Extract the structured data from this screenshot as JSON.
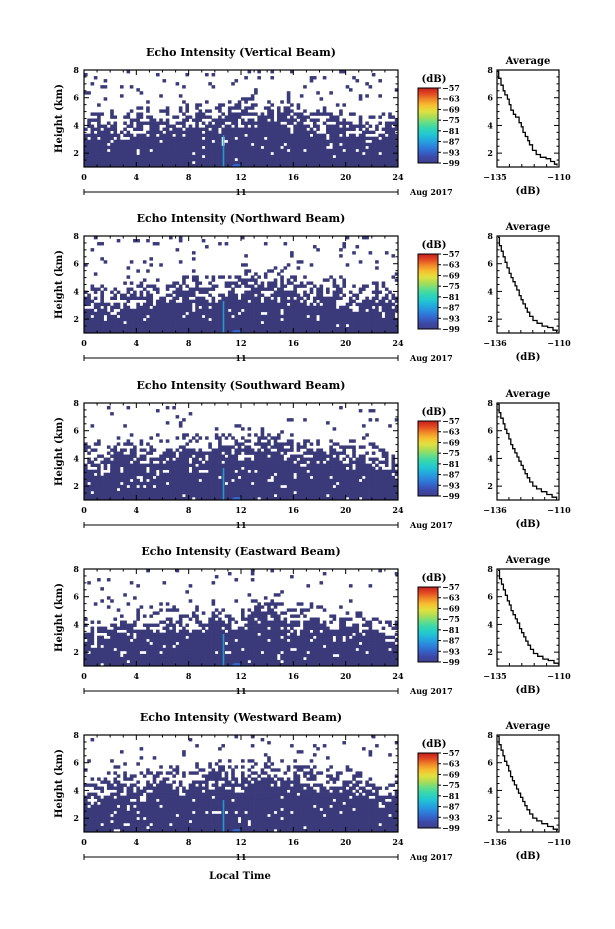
{
  "figure": {
    "xlabel": "Local Time",
    "date_label": "Aug 2017",
    "day_label": "11",
    "colorbar_unit": "(dB)",
    "avg_title": "Average",
    "avg_xlabel": "(dB)"
  },
  "colors": {
    "background": "#ffffff",
    "base": "#3a3a7a",
    "colormap": [
      "#3f3f8c",
      "#3c49a8",
      "#3366cc",
      "#2b88dd",
      "#22aadd",
      "#22c8d0",
      "#33d6b0",
      "#66dd88",
      "#aadd55",
      "#e0e040",
      "#f7c030",
      "#f08a28",
      "#e24a22",
      "#c41e1e"
    ]
  },
  "chart_data": [
    {
      "type": "heatmap",
      "title": "Echo Intensity (Vertical Beam)",
      "ylabel": "Height (km)",
      "xlim": [
        0,
        24
      ],
      "ylim": [
        1,
        8
      ],
      "xticks": [
        0,
        4,
        8,
        12,
        16,
        20,
        24
      ],
      "yticks": [
        2,
        4,
        6,
        8
      ],
      "colorbar": {
        "ticks": [
          -57,
          -63,
          -69,
          -75,
          -81,
          -87,
          -93,
          -99
        ],
        "range": [
          -99,
          -57
        ]
      },
      "profile": {
        "xlim": [
          -135,
          -110
        ],
        "xtick_labels": [
          "-135",
          "-110"
        ],
        "yticks": [
          2,
          4,
          6,
          8
        ],
        "x": [
          -134.8,
          -134.3,
          -133.4,
          -132.5,
          -131.8,
          -130.8,
          -130.1,
          -129.4,
          -128.4,
          -127.5,
          -126.1,
          -125.2,
          -124.5,
          -123.6,
          -122.6,
          -121.9,
          -120.7,
          -119.2,
          -117.5,
          -115.2,
          -113.4,
          -111.8,
          -110.8
        ],
        "y": [
          7.9,
          7.4,
          6.9,
          6.5,
          6.2,
          5.9,
          5.5,
          5.1,
          4.8,
          4.6,
          4.2,
          3.9,
          3.5,
          3.2,
          2.9,
          2.6,
          2.2,
          1.9,
          1.7,
          1.6,
          1.4,
          1.2,
          1.1
        ]
      }
    },
    {
      "type": "heatmap",
      "title": "Echo Intensity (Northward Beam)",
      "ylabel": "Height (km)",
      "xlim": [
        0,
        24
      ],
      "ylim": [
        1,
        8
      ],
      "xticks": [
        0,
        4,
        8,
        12,
        16,
        20,
        24
      ],
      "yticks": [
        2,
        4,
        6,
        8
      ],
      "colorbar": {
        "ticks": [
          -57,
          -63,
          -69,
          -75,
          -81,
          -87,
          -93,
          -99
        ],
        "range": [
          -99,
          -57
        ]
      },
      "profile": {
        "xlim": [
          -136,
          -110
        ],
        "xtick_labels": [
          "-136",
          "-110"
        ],
        "yticks": [
          2,
          4,
          6,
          8
        ],
        "x": [
          -135.6,
          -135.0,
          -134.2,
          -133.4,
          -132.6,
          -131.8,
          -130.9,
          -130.1,
          -129.3,
          -128.4,
          -127.7,
          -126.7,
          -125.9,
          -125.1,
          -124.1,
          -123.3,
          -122.3,
          -120.9,
          -119.2,
          -117.1,
          -114.8,
          -112.5,
          -110.8
        ],
        "y": [
          7.9,
          7.3,
          6.9,
          6.5,
          6.1,
          5.7,
          5.3,
          5.0,
          4.7,
          4.4,
          4.1,
          3.7,
          3.4,
          3.1,
          2.8,
          2.5,
          2.2,
          1.9,
          1.7,
          1.5,
          1.4,
          1.2,
          1.1
        ]
      }
    },
    {
      "type": "heatmap",
      "title": "Echo Intensity (Southward Beam)",
      "ylabel": "Height (km)",
      "xlim": [
        0,
        24
      ],
      "ylim": [
        1,
        8
      ],
      "xticks": [
        0,
        4,
        8,
        12,
        16,
        20,
        24
      ],
      "yticks": [
        2,
        4,
        6,
        8
      ],
      "colorbar": {
        "ticks": [
          -57,
          -63,
          -69,
          -75,
          -81,
          -87,
          -93,
          -99
        ],
        "range": [
          -99,
          -57
        ]
      },
      "profile": {
        "xlim": [
          -136,
          -110
        ],
        "xtick_labels": [
          "-136",
          "-110"
        ],
        "yticks": [
          2,
          4,
          6,
          8
        ],
        "x": [
          -135.8,
          -135.1,
          -134.4,
          -133.4,
          -132.7,
          -131.9,
          -131.0,
          -130.2,
          -129.4,
          -128.5,
          -127.6,
          -126.8,
          -125.9,
          -125.0,
          -124.2,
          -123.3,
          -122.3,
          -121.0,
          -119.4,
          -117.4,
          -115.1,
          -112.9,
          -111.0
        ],
        "y": [
          7.9,
          7.3,
          6.9,
          6.5,
          6.1,
          5.8,
          5.4,
          5.0,
          4.7,
          4.4,
          4.1,
          3.8,
          3.5,
          3.2,
          2.9,
          2.6,
          2.3,
          2.0,
          1.8,
          1.6,
          1.4,
          1.2,
          1.1
        ]
      }
    },
    {
      "type": "heatmap",
      "title": "Echo Intensity (Eastward Beam)",
      "ylabel": "Height (km)",
      "xlim": [
        0,
        24
      ],
      "ylim": [
        1,
        8
      ],
      "xticks": [
        0,
        4,
        8,
        12,
        16,
        20,
        24
      ],
      "yticks": [
        2,
        4,
        6,
        8
      ],
      "colorbar": {
        "ticks": [
          -57,
          -63,
          -69,
          -75,
          -81,
          -87,
          -93,
          -99
        ],
        "range": [
          -99,
          -57
        ]
      },
      "profile": {
        "xlim": [
          -135,
          -110
        ],
        "xtick_labels": [
          "-135",
          "-110"
        ],
        "yticks": [
          2,
          4,
          6,
          8
        ],
        "x": [
          -134.6,
          -134.0,
          -133.2,
          -132.4,
          -131.6,
          -130.8,
          -130.0,
          -129.3,
          -128.5,
          -127.6,
          -126.8,
          -125.9,
          -125.1,
          -124.2,
          -123.4,
          -122.5,
          -121.5,
          -120.3,
          -118.6,
          -116.5,
          -114.3,
          -112.0,
          -110.3
        ],
        "y": [
          7.9,
          7.3,
          6.9,
          6.5,
          6.1,
          5.7,
          5.4,
          5.0,
          4.7,
          4.4,
          4.1,
          3.7,
          3.4,
          3.1,
          2.8,
          2.5,
          2.2,
          1.9,
          1.7,
          1.5,
          1.4,
          1.2,
          1.1
        ]
      }
    },
    {
      "type": "heatmap",
      "title": "Echo Intensity (Westward Beam)",
      "ylabel": "Height (km)",
      "xlim": [
        0,
        24
      ],
      "ylim": [
        1,
        8
      ],
      "xticks": [
        0,
        4,
        8,
        12,
        16,
        20,
        24
      ],
      "yticks": [
        2,
        4,
        6,
        8
      ],
      "colorbar": {
        "ticks": [
          -57,
          -63,
          -69,
          -75,
          -81,
          -87,
          -93,
          -99
        ],
        "range": [
          -99,
          -57
        ]
      },
      "profile": {
        "xlim": [
          -136,
          -110
        ],
        "xtick_labels": [
          "-136",
          "-110"
        ],
        "yticks": [
          2,
          4,
          6,
          8
        ],
        "x": [
          -135.7,
          -135.1,
          -134.3,
          -133.5,
          -132.8,
          -131.9,
          -131.1,
          -130.3,
          -129.5,
          -128.7,
          -127.8,
          -127.0,
          -126.1,
          -125.2,
          -124.3,
          -123.4,
          -122.3,
          -121.0,
          -119.3,
          -117.2,
          -114.8,
          -112.4,
          -110.7
        ],
        "y": [
          7.9,
          7.3,
          6.9,
          6.5,
          6.1,
          5.8,
          5.4,
          5.0,
          4.7,
          4.4,
          4.1,
          3.8,
          3.5,
          3.2,
          2.9,
          2.6,
          2.3,
          2.0,
          1.8,
          1.6,
          1.4,
          1.2,
          1.1
        ]
      }
    }
  ]
}
